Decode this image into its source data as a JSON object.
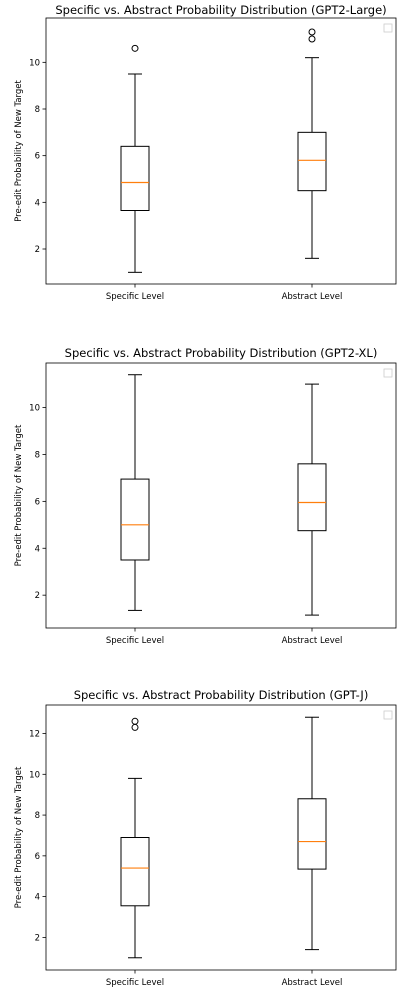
{
  "chart_data": [
    {
      "type": "box",
      "title": "Specific vs. Abstract Probability Distribution (GPT2-Large)",
      "ylabel": "Pre-edit Probability of New Target",
      "categories": [
        "Specific Level",
        "Abstract Level"
      ],
      "ylim": [
        0.5,
        11.9
      ],
      "yticks": [
        2,
        4,
        6,
        8,
        10
      ],
      "legend": "top-right (empty)",
      "boxes": [
        {
          "whislo": 1.0,
          "q1": 3.65,
          "median": 4.85,
          "q3": 6.4,
          "whishi": 9.5,
          "fliers": [
            10.6
          ]
        },
        {
          "whislo": 1.6,
          "q1": 4.5,
          "median": 5.8,
          "q3": 7.0,
          "whishi": 10.2,
          "fliers": [
            11.0,
            11.3
          ]
        }
      ]
    },
    {
      "type": "box",
      "title": "Specific vs. Abstract Probability Distribution (GPT2-XL)",
      "ylabel": "Pre-edit Probability of New Target",
      "categories": [
        "Specific Level",
        "Abstract Level"
      ],
      "ylim": [
        0.6,
        11.9
      ],
      "yticks": [
        2,
        4,
        6,
        8,
        10
      ],
      "legend": "top-right (empty)",
      "boxes": [
        {
          "whislo": 1.35,
          "q1": 3.5,
          "median": 5.0,
          "q3": 6.95,
          "whishi": 11.4,
          "fliers": []
        },
        {
          "whislo": 1.15,
          "q1": 4.75,
          "median": 5.95,
          "q3": 7.6,
          "whishi": 11.0,
          "fliers": []
        }
      ]
    },
    {
      "type": "box",
      "title": "Specific vs. Abstract Probability Distribution (GPT-J)",
      "ylabel": "Pre-edit Probability of New Target",
      "categories": [
        "Specific Level",
        "Abstract Level"
      ],
      "ylim": [
        0.4,
        13.4
      ],
      "yticks": [
        2,
        4,
        6,
        8,
        10,
        12
      ],
      "legend": "top-right (empty)",
      "boxes": [
        {
          "whislo": 1.0,
          "q1": 3.55,
          "median": 5.4,
          "q3": 6.9,
          "whishi": 9.8,
          "fliers": [
            12.3,
            12.6
          ]
        },
        {
          "whislo": 1.4,
          "q1": 5.35,
          "median": 6.7,
          "q3": 8.8,
          "whishi": 12.8,
          "fliers": []
        }
      ]
    }
  ]
}
